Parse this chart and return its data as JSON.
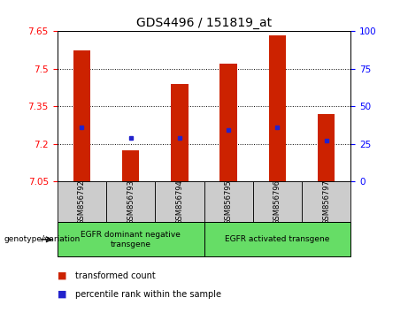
{
  "title": "GDS4496 / 151819_at",
  "samples": [
    "GSM856792",
    "GSM856793",
    "GSM856794",
    "GSM856795",
    "GSM856796",
    "GSM856797"
  ],
  "bar_values": [
    7.575,
    7.175,
    7.44,
    7.52,
    7.635,
    7.32
  ],
  "percentile_values": [
    7.265,
    7.225,
    7.225,
    7.255,
    7.265,
    7.215
  ],
  "y_min": 7.05,
  "y_max": 7.65,
  "y_ticks": [
    7.05,
    7.2,
    7.35,
    7.5,
    7.65
  ],
  "right_y_ticks": [
    0,
    25,
    50,
    75,
    100
  ],
  "bar_color": "#cc2200",
  "percentile_color": "#2222cc",
  "group1_label": "EGFR dominant negative\ntransgene",
  "group2_label": "EGFR activated transgene",
  "group1_indices": [
    0,
    1,
    2
  ],
  "group2_indices": [
    3,
    4,
    5
  ],
  "genotype_label": "genotype/variation",
  "legend_bar_label": "transformed count",
  "legend_pct_label": "percentile rank within the sample",
  "bar_width": 0.35,
  "group_bg_color": "#66dd66",
  "sample_bg_color": "#cccccc",
  "title_fontsize": 10,
  "tick_fontsize": 7.5,
  "sample_fontsize": 6,
  "legend_fontsize": 7
}
